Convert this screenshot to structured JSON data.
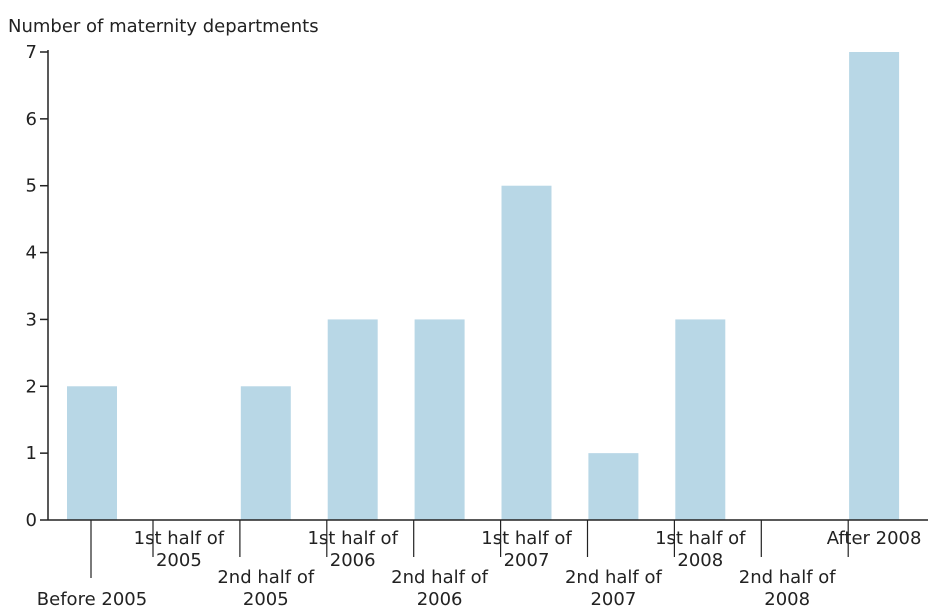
{
  "chart_data": {
    "type": "bar",
    "ylabel": "Number of maternity departments",
    "ylim": [
      0,
      7
    ],
    "yticks": [
      0,
      1,
      2,
      3,
      4,
      5,
      6,
      7
    ],
    "grid": false,
    "categories": [
      [
        "Before 2005"
      ],
      [
        "1st half of",
        "2005"
      ],
      [
        "2nd half of",
        "2005"
      ],
      [
        "1st half of",
        "2006"
      ],
      [
        "2nd half of",
        "2006"
      ],
      [
        "1st half of",
        "2007"
      ],
      [
        "2nd half of",
        "2007"
      ],
      [
        "1st half of",
        "2008"
      ],
      [
        "2nd half of",
        "2008"
      ],
      [
        "After 2008"
      ]
    ],
    "values": [
      2,
      0,
      2,
      3,
      3,
      5,
      1,
      3,
      0,
      7
    ],
    "bar_color": "#b8d7e6",
    "axis_color": "#222222"
  }
}
